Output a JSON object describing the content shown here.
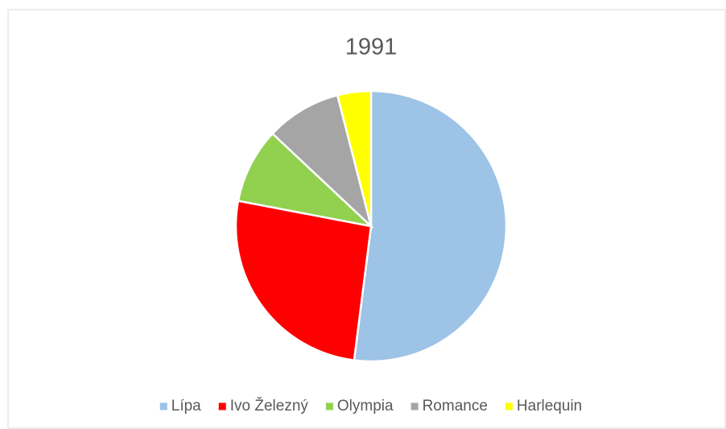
{
  "chart_data": {
    "type": "pie",
    "title": "1991",
    "categories": [
      "Lípa",
      "Ivo Železný",
      "Olympia",
      "Romance",
      "Harlequin"
    ],
    "values": [
      52,
      26,
      9,
      9,
      4
    ],
    "colors": [
      "#9dc3e6",
      "#ff0000",
      "#92d050",
      "#a5a5a5",
      "#ffff00"
    ],
    "legend": "bottom"
  }
}
